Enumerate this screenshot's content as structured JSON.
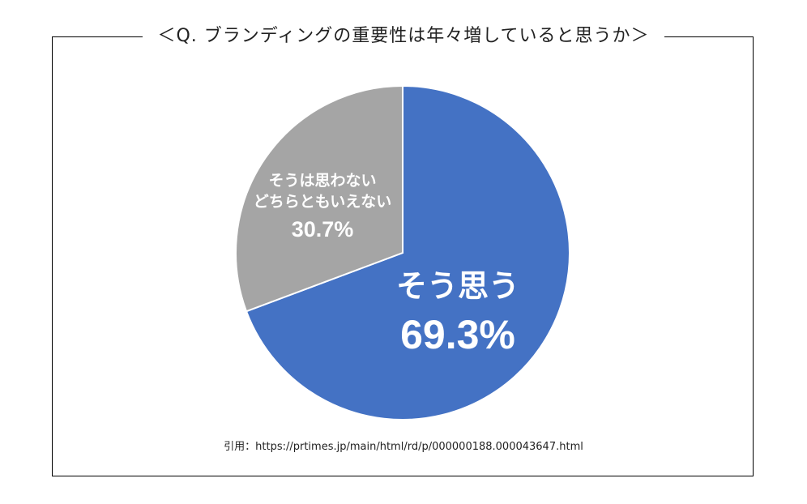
{
  "title": "＜Q. ブランディングの重要性は年々増していると思うか＞",
  "source": "引用：https://prtimes.jp/main/html/rd/p/000000188.000043647.html",
  "colors": {
    "yes": "#4472C4",
    "other": "#A5A5A5",
    "label": "#FFFFFF"
  },
  "chart_data": {
    "type": "pie",
    "title": "＜Q. ブランディングの重要性は年々増していると思うか＞",
    "slices": [
      {
        "label": "そう思う",
        "value": 69.3,
        "value_label": "69.3%",
        "color": "#4472C4"
      },
      {
        "label_lines": [
          "そうは思わない",
          "どちらともいえない"
        ],
        "value": 30.7,
        "value_label": "30.7%",
        "color": "#A5A5A5"
      }
    ]
  }
}
